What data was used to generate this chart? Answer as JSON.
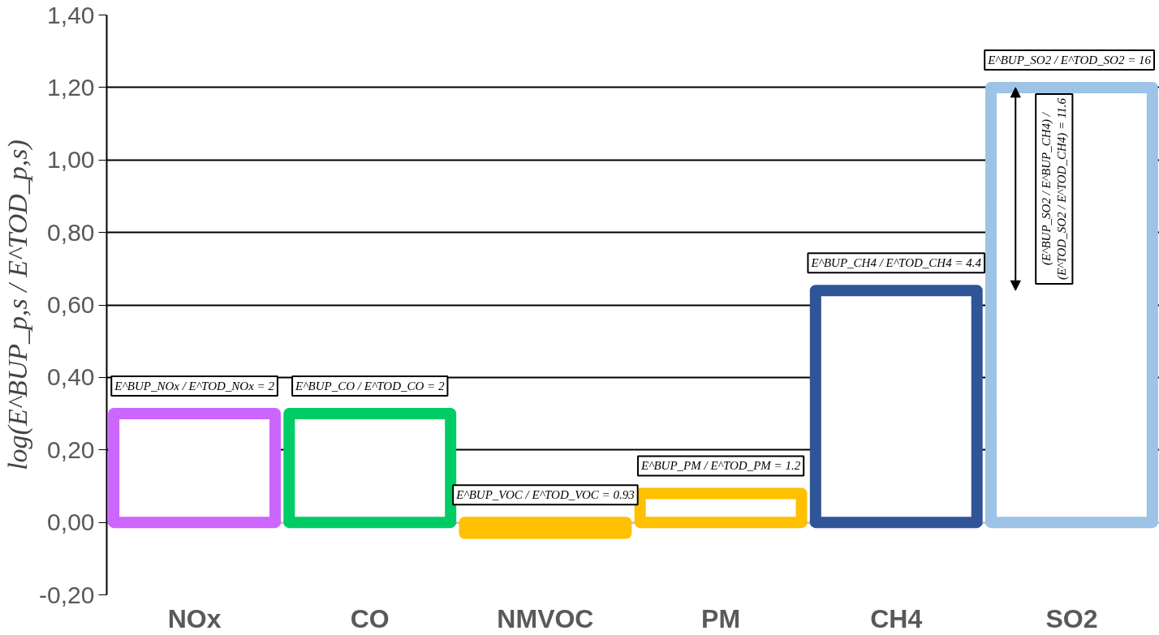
{
  "chart_data": {
    "type": "bar",
    "ylabel": "log(E^BUP_p,s / E^TOD_p,s)",
    "categories": [
      "NOx",
      "CO",
      "NMVOC",
      "PM",
      "CH4",
      "SO2"
    ],
    "values": [
      0.3,
      0.3,
      -0.03,
      0.08,
      0.64,
      1.2
    ],
    "colors": [
      "#cc66ff",
      "#00cc66",
      "#ffc000",
      "#ffc000",
      "#2f5597",
      "#9dc3e6"
    ],
    "ylim": [
      -0.2,
      1.4
    ],
    "yticks": [
      {
        "value": -0.2,
        "label": "-0,20"
      },
      {
        "value": 0,
        "label": "0,00"
      },
      {
        "value": 0.2,
        "label": "0,20"
      },
      {
        "value": 0.4,
        "label": "0,40"
      },
      {
        "value": 0.6,
        "label": "0,60"
      },
      {
        "value": 0.8,
        "label": "0,80"
      },
      {
        "value": 1.0,
        "label": "1,00"
      },
      {
        "value": 1.2,
        "label": "1,20"
      },
      {
        "value": 1.4,
        "label": "1,40"
      }
    ],
    "grid": "y",
    "annotations": [
      {
        "text": "E^BUP_NOx / E^TOD_NOx = 2",
        "x": "NOx",
        "y": 0.3
      },
      {
        "text": "E^BUP_CO / E^TOD_CO = 2",
        "x": "CO",
        "y": 0.3
      },
      {
        "text": "E^BUP_VOC / E^TOD_VOC = 0.93",
        "x": "NMVOC",
        "y": -0.03
      },
      {
        "text": "E^BUP_PM / E^TOD_PM = 1.2",
        "x": "PM",
        "y": 0.08
      },
      {
        "text": "E^BUP_CH4 / E^TOD_CH4 = 4.4",
        "x": "CH4",
        "y": 0.64
      },
      {
        "text": "E^BUP_SO2 / E^TOD_SO2 = 16",
        "x": "SO2",
        "y": 1.2
      },
      "(E^BUP_SO2 / E^BUP_CH4) / (E^TOD_SO2 / E^TOD_CH4) = 11.6"
    ]
  }
}
